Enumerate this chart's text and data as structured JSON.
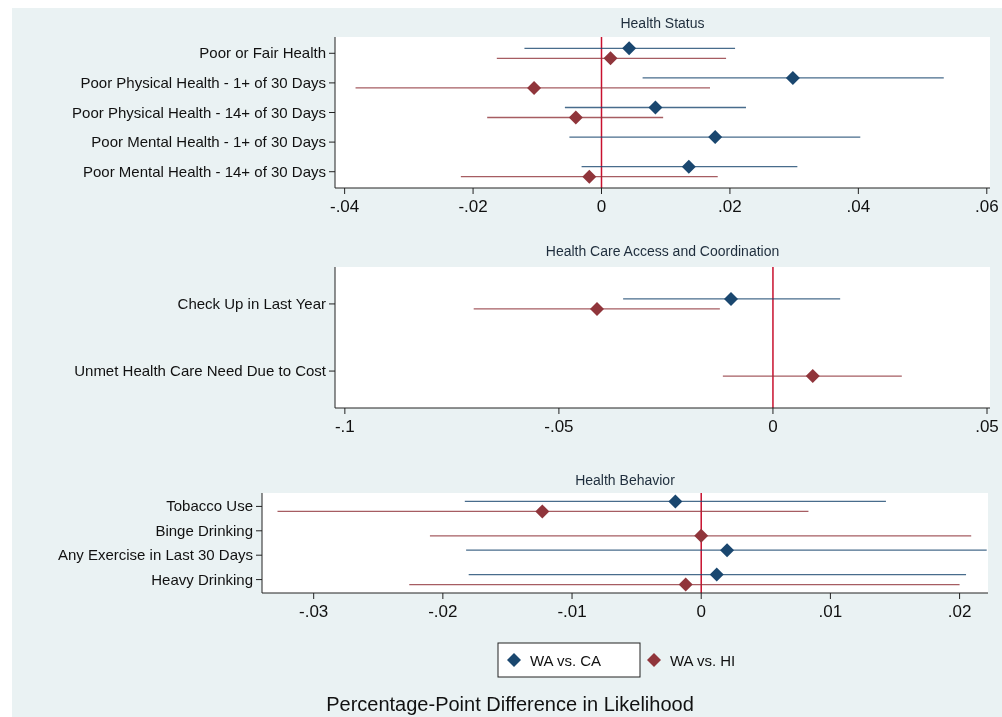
{
  "chart_data": [
    {
      "type": "scatter",
      "orientation": "horizontal",
      "title": "Health Status",
      "categories": [
        "Poor or Fair Health",
        "Poor Physical Health - 1+ of 30 Days",
        "Poor Physical Health - 14+ of 30 Days",
        "Poor Mental Health - 1+ of 30 Days",
        "Poor Mental Health - 14+ of 30 Days"
      ],
      "xlim": [
        -0.0415,
        0.0605
      ],
      "xticks": [
        {
          "value": -0.04,
          "label": "-.04"
        },
        {
          "value": -0.02,
          "label": "-.02"
        },
        {
          "value": 0,
          "label": "0"
        },
        {
          "value": 0.02,
          "label": ".02"
        },
        {
          "value": 0.04,
          "label": ".04"
        },
        {
          "value": 0.06,
          "label": ".06"
        }
      ],
      "marker": "diamond",
      "legend": false,
      "series": [
        {
          "color": "#1a476f",
          "values": [
            0.0043,
            0.0298,
            0.0084,
            0.0177,
            0.0136
          ],
          "errors": [
            [
              -0.012,
              0.0208
            ],
            [
              0.0064,
              0.0533
            ],
            [
              -0.0057,
              0.0225
            ],
            [
              -0.005,
              0.0403
            ],
            [
              -0.0031,
              0.0305
            ]
          ]
        },
        {
          "color": "#90353b",
          "values": [
            0.0014,
            -0.0105,
            -0.004,
            null,
            -0.0019
          ],
          "errors": [
            [
              -0.0163,
              0.0194
            ],
            [
              -0.0383,
              0.0169
            ],
            [
              -0.0178,
              0.0096
            ],
            null,
            [
              -0.0219,
              0.0181
            ]
          ]
        }
      ],
      "ref_lines": [
        {
          "axis": "x",
          "value": 0,
          "color": "#c8102e"
        }
      ]
    },
    {
      "type": "scatter",
      "orientation": "horizontal",
      "title": "Health Care Access and Coordination",
      "categories": [
        "Check Up in Last Year",
        "Unmet Health Care Need Due to Cost"
      ],
      "xlim": [
        -0.1023,
        0.0507
      ],
      "xticks": [
        {
          "value": -0.1,
          "label": "-.1"
        },
        {
          "value": -0.05,
          "label": "-.05"
        },
        {
          "value": 0,
          "label": "0"
        },
        {
          "value": 0.05,
          "label": ".05"
        }
      ],
      "marker": "diamond",
      "legend": false,
      "series": [
        {
          "color": "#1a476f",
          "values": [
            -0.0098,
            null
          ],
          "errors": [
            [
              -0.035,
              0.0157
            ],
            null
          ]
        },
        {
          "color": "#90353b",
          "values": [
            -0.0411,
            0.0093
          ],
          "errors": [
            [
              -0.0699,
              -0.0124
            ],
            [
              -0.0117,
              0.0301
            ]
          ]
        }
      ],
      "ref_lines": [
        {
          "axis": "x",
          "value": 0,
          "color": "#c8102e"
        }
      ]
    },
    {
      "type": "scatter",
      "orientation": "horizontal",
      "title": "Health Behavior",
      "xlabel": "Percentage-Point Difference in Likelihood",
      "categories": [
        "Tobacco Use",
        "Binge Drinking",
        "Any Exercise in Last 30 Days",
        "Heavy Drinking"
      ],
      "xlim": [
        -0.034,
        0.0222
      ],
      "xticks": [
        {
          "value": -0.03,
          "label": "-.03"
        },
        {
          "value": -0.02,
          "label": "-.02"
        },
        {
          "value": -0.01,
          "label": "-.01"
        },
        {
          "value": 0,
          "label": "0"
        },
        {
          "value": 0.01,
          "label": ".01"
        },
        {
          "value": 0.02,
          "label": ".02"
        }
      ],
      "marker": "diamond",
      "legend": "bottom",
      "series": [
        {
          "name": "WA vs. CA",
          "color": "#1a476f",
          "values": [
            -0.002,
            null,
            0.002,
            0.0012
          ],
          "errors": [
            [
              -0.0183,
              0.0143
            ],
            null,
            [
              -0.0182,
              0.0221
            ],
            [
              -0.018,
              0.0205
            ]
          ]
        },
        {
          "name": "WA vs. HI",
          "color": "#90353b",
          "values": [
            -0.0123,
            0,
            null,
            -0.0012
          ],
          "errors": [
            [
              -0.0328,
              0.0083
            ],
            [
              -0.021,
              0.0209
            ],
            null,
            [
              -0.0226,
              0.02
            ]
          ]
        }
      ],
      "ref_lines": [
        {
          "axis": "x",
          "value": 0,
          "color": "#c8102e"
        }
      ]
    }
  ]
}
